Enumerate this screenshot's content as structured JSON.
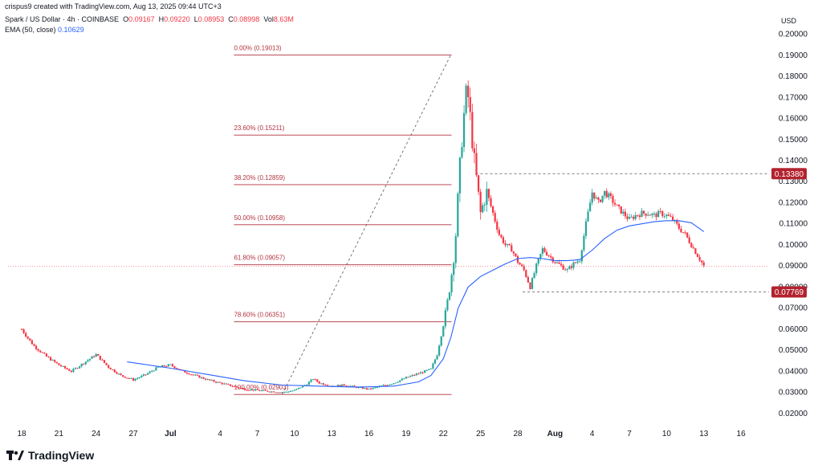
{
  "header": {
    "created_note": "crispus9 created with TradingView.com, Aug 13, 2025 09:44 UTC+3",
    "symbol": "Spark / US Dollar · 4h · COINBASE",
    "open_label": "O",
    "open": "0.09167",
    "high_label": "H",
    "high": "0.09220",
    "low_label": "L",
    "low": "0.08953",
    "close_label": "C",
    "close": "0.08998",
    "vol_label": "Vol",
    "vol": "8.63M",
    "ema_label": "EMA (50, close)",
    "ema_value": "0.10629"
  },
  "brand": {
    "name": "TradingView"
  },
  "colors": {
    "up": "#26a69a",
    "down": "#f23645",
    "ema": "#2962ff",
    "fib": "#b2323f",
    "axis_text": "#131722"
  },
  "chart_data": {
    "type": "candlestick",
    "currency": "USD",
    "ylim": [
      0.015,
      0.205
    ],
    "y_ticks": [
      "0.20000",
      "0.19000",
      "0.18000",
      "0.17000",
      "0.16000",
      "0.15000",
      "0.14000",
      "0.13000",
      "0.12000",
      "0.11000",
      "0.10000",
      "0.09000",
      "0.08000",
      "0.07000",
      "0.06000",
      "0.05000",
      "0.04000",
      "0.03000",
      "0.02000"
    ],
    "x_ticks": [
      {
        "label": "18",
        "day": 18
      },
      {
        "label": "21",
        "day": 21
      },
      {
        "label": "24",
        "day": 24
      },
      {
        "label": "27",
        "day": 27
      },
      {
        "label": "Jul",
        "day": 30
      },
      {
        "label": "4",
        "day": 34
      },
      {
        "label": "7",
        "day": 37
      },
      {
        "label": "10",
        "day": 40
      },
      {
        "label": "13",
        "day": 43
      },
      {
        "label": "16",
        "day": 46
      },
      {
        "label": "19",
        "day": 49
      },
      {
        "label": "22",
        "day": 52
      },
      {
        "label": "25",
        "day": 55
      },
      {
        "label": "28",
        "day": 58
      },
      {
        "label": "Aug",
        "day": 61
      },
      {
        "label": "4",
        "day": 64
      },
      {
        "label": "7",
        "day": 67
      },
      {
        "label": "10",
        "day": 70
      },
      {
        "label": "13",
        "day": 73
      },
      {
        "label": "16",
        "day": 76
      }
    ],
    "price_badges": [
      {
        "label": "0.13380",
        "value": 0.1338,
        "style": "dark-red"
      },
      {
        "label": "0.07769",
        "value": 0.07769,
        "style": "dark-red"
      }
    ],
    "fib_levels": [
      {
        "label": "0.00% (0.19013)",
        "value": 0.19013
      },
      {
        "label": "23.60% (0.15211)",
        "value": 0.15211
      },
      {
        "label": "38.20% (0.12859)",
        "value": 0.12859
      },
      {
        "label": "50.00% (0.10958)",
        "value": 0.10958
      },
      {
        "label": "61.80% (0.09057)",
        "value": 0.09057
      },
      {
        "label": "78.60% (0.06351)",
        "value": 0.06351
      },
      {
        "label": "100.00% (0.02903)",
        "value": 0.02903
      }
    ],
    "fib_range_days": [
      39.0,
      52.6
    ],
    "trend_line": [
      [
        39.0,
        0.02903
      ],
      [
        52.6,
        0.19013
      ]
    ],
    "resistance_line": {
      "value": 0.1338,
      "from_day": 54.6
    },
    "support_line": {
      "value": 0.07769,
      "from_day": 58.4
    },
    "last_price_line": 0.08998,
    "ema": [
      [
        26.5,
        0.0445
      ],
      [
        30,
        0.0415
      ],
      [
        33,
        0.0385
      ],
      [
        36,
        0.0355
      ],
      [
        39,
        0.0335
      ],
      [
        42,
        0.033
      ],
      [
        45,
        0.0325
      ],
      [
        48,
        0.033
      ],
      [
        50,
        0.035
      ],
      [
        51,
        0.038
      ],
      [
        52,
        0.046
      ],
      [
        52.6,
        0.056
      ],
      [
        53.2,
        0.07
      ],
      [
        54,
        0.08
      ],
      [
        55,
        0.085
      ],
      [
        56,
        0.088
      ],
      [
        57,
        0.091
      ],
      [
        58,
        0.0935
      ],
      [
        59,
        0.094
      ],
      [
        60,
        0.0935
      ],
      [
        61,
        0.0925
      ],
      [
        62,
        0.0925
      ],
      [
        63,
        0.093
      ],
      [
        64,
        0.0975
      ],
      [
        65,
        0.103
      ],
      [
        66,
        0.107
      ],
      [
        67,
        0.109
      ],
      [
        68,
        0.11
      ],
      [
        69,
        0.111
      ],
      [
        70,
        0.1115
      ],
      [
        71,
        0.1115
      ],
      [
        72,
        0.1105
      ],
      [
        73,
        0.1063
      ]
    ],
    "price_path": [
      [
        18.0,
        0.06
      ],
      [
        18.4,
        0.0565
      ],
      [
        19.0,
        0.052
      ],
      [
        20.0,
        0.047
      ],
      [
        21.0,
        0.043
      ],
      [
        22.0,
        0.04
      ],
      [
        23.0,
        0.044
      ],
      [
        24.0,
        0.048
      ],
      [
        25.0,
        0.042
      ],
      [
        26.0,
        0.038
      ],
      [
        27.0,
        0.036
      ],
      [
        28.0,
        0.0385
      ],
      [
        29.0,
        0.042
      ],
      [
        30.0,
        0.043
      ],
      [
        31.0,
        0.04
      ],
      [
        32.0,
        0.038
      ],
      [
        33.0,
        0.036
      ],
      [
        34.0,
        0.0345
      ],
      [
        35.0,
        0.033
      ],
      [
        36.0,
        0.0315
      ],
      [
        37.0,
        0.031
      ],
      [
        38.0,
        0.0305
      ],
      [
        39.0,
        0.03
      ],
      [
        40.0,
        0.031
      ],
      [
        41.0,
        0.034
      ],
      [
        41.5,
        0.0365
      ],
      [
        42.0,
        0.0345
      ],
      [
        43.0,
        0.033
      ],
      [
        44.0,
        0.0335
      ],
      [
        45.0,
        0.0325
      ],
      [
        46.0,
        0.0315
      ],
      [
        47.0,
        0.033
      ],
      [
        48.0,
        0.0345
      ],
      [
        49.0,
        0.037
      ],
      [
        50.0,
        0.039
      ],
      [
        51.0,
        0.041
      ],
      [
        51.5,
        0.048
      ],
      [
        52.0,
        0.062
      ],
      [
        52.4,
        0.075
      ],
      [
        52.8,
        0.092
      ],
      [
        53.0,
        0.105
      ],
      [
        53.3,
        0.135
      ],
      [
        53.6,
        0.158
      ],
      [
        53.9,
        0.175
      ],
      [
        54.1,
        0.165
      ],
      [
        54.4,
        0.145
      ],
      [
        54.7,
        0.13
      ],
      [
        55.0,
        0.115
      ],
      [
        55.5,
        0.125
      ],
      [
        56.0,
        0.115
      ],
      [
        56.5,
        0.105
      ],
      [
        57.0,
        0.1
      ],
      [
        57.5,
        0.098
      ],
      [
        58.0,
        0.092
      ],
      [
        58.5,
        0.088
      ],
      [
        59.0,
        0.08
      ],
      [
        59.5,
        0.09
      ],
      [
        60.0,
        0.098
      ],
      [
        60.5,
        0.095
      ],
      [
        61.0,
        0.092
      ],
      [
        61.5,
        0.09
      ],
      [
        62.0,
        0.088
      ],
      [
        62.5,
        0.091
      ],
      [
        63.0,
        0.093
      ],
      [
        63.5,
        0.11
      ],
      [
        64.0,
        0.125
      ],
      [
        64.5,
        0.12
      ],
      [
        65.0,
        0.125
      ],
      [
        65.5,
        0.122
      ],
      [
        66.0,
        0.118
      ],
      [
        66.5,
        0.115
      ],
      [
        67.0,
        0.112
      ],
      [
        67.5,
        0.114
      ],
      [
        68.0,
        0.115
      ],
      [
        68.5,
        0.115
      ],
      [
        69.0,
        0.114
      ],
      [
        69.5,
        0.115
      ],
      [
        70.0,
        0.114
      ],
      [
        70.5,
        0.112
      ],
      [
        71.0,
        0.108
      ],
      [
        71.5,
        0.105
      ],
      [
        72.0,
        0.1
      ],
      [
        72.5,
        0.095
      ],
      [
        73.0,
        0.09
      ]
    ]
  }
}
